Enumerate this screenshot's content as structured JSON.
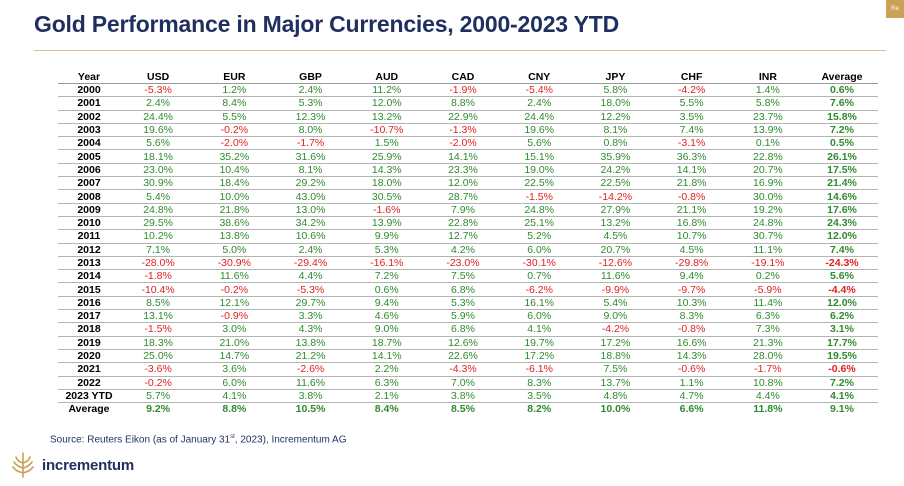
{
  "title": "Gold Performance in Major Currencies, 2000-2023 YTD",
  "corner_tag": "Re",
  "table": {
    "headers": [
      "Year",
      "USD",
      "EUR",
      "GBP",
      "AUD",
      "CAD",
      "CNY",
      "JPY",
      "CHF",
      "INR",
      "Average"
    ],
    "rows": [
      [
        "2000",
        "-5.3%",
        "1.2%",
        "2.4%",
        "11.2%",
        "-1.9%",
        "-5.4%",
        "5.8%",
        "-4.2%",
        "1.4%",
        "0.6%"
      ],
      [
        "2001",
        "2.4%",
        "8.4%",
        "5.3%",
        "12.0%",
        "8.8%",
        "2.4%",
        "18.0%",
        "5.5%",
        "5.8%",
        "7.6%"
      ],
      [
        "2002",
        "24.4%",
        "5.5%",
        "12.3%",
        "13.2%",
        "22.9%",
        "24.4%",
        "12.2%",
        "3.5%",
        "23.7%",
        "15.8%"
      ],
      [
        "2003",
        "19.6%",
        "-0.2%",
        "8.0%",
        "-10.7%",
        "-1.3%",
        "19.6%",
        "8.1%",
        "7.4%",
        "13.9%",
        "7.2%"
      ],
      [
        "2004",
        "5.6%",
        "-2.0%",
        "-1.7%",
        "1.5%",
        "-2.0%",
        "5.6%",
        "0.8%",
        "-3.1%",
        "0.1%",
        "0.5%"
      ],
      [
        "2005",
        "18.1%",
        "35.2%",
        "31.6%",
        "25.9%",
        "14.1%",
        "15.1%",
        "35.9%",
        "36.3%",
        "22.8%",
        "26.1%"
      ],
      [
        "2006",
        "23.0%",
        "10.4%",
        "8.1%",
        "14.3%",
        "23.3%",
        "19.0%",
        "24.2%",
        "14.1%",
        "20.7%",
        "17.5%"
      ],
      [
        "2007",
        "30.9%",
        "18.4%",
        "29.2%",
        "18.0%",
        "12.0%",
        "22.5%",
        "22.5%",
        "21.8%",
        "16.9%",
        "21.4%"
      ],
      [
        "2008",
        "5.4%",
        "10.0%",
        "43.0%",
        "30.5%",
        "28.7%",
        "-1.5%",
        "-14.2%",
        "-0.8%",
        "30.0%",
        "14.6%"
      ],
      [
        "2009",
        "24.8%",
        "21.8%",
        "13.0%",
        "-1.6%",
        "7.9%",
        "24.8%",
        "27.9%",
        "21.1%",
        "19.2%",
        "17.6%"
      ],
      [
        "2010",
        "29.5%",
        "38.6%",
        "34.2%",
        "13.9%",
        "22.8%",
        "25.1%",
        "13.2%",
        "16.8%",
        "24.8%",
        "24.3%"
      ],
      [
        "2011",
        "10.2%",
        "13.8%",
        "10.6%",
        "9.9%",
        "12.7%",
        "5.2%",
        "4.5%",
        "10.7%",
        "30.7%",
        "12.0%"
      ],
      [
        "2012",
        "7.1%",
        "5.0%",
        "2.4%",
        "5.3%",
        "4.2%",
        "6.0%",
        "20.7%",
        "4.5%",
        "11.1%",
        "7.4%"
      ],
      [
        "2013",
        "-28.0%",
        "-30.9%",
        "-29.4%",
        "-16.1%",
        "-23.0%",
        "-30.1%",
        "-12.6%",
        "-29.8%",
        "-19.1%",
        "-24.3%"
      ],
      [
        "2014",
        "-1.8%",
        "11.6%",
        "4.4%",
        "7.2%",
        "7.5%",
        "0.7%",
        "11.6%",
        "9.4%",
        "0.2%",
        "5.6%"
      ],
      [
        "2015",
        "-10.4%",
        "-0.2%",
        "-5.3%",
        "0.6%",
        "6.8%",
        "-6.2%",
        "-9.9%",
        "-9.7%",
        "-5.9%",
        "-4.4%"
      ],
      [
        "2016",
        "8.5%",
        "12.1%",
        "29.7%",
        "9.4%",
        "5.3%",
        "16.1%",
        "5.4%",
        "10.3%",
        "11.4%",
        "12.0%"
      ],
      [
        "2017",
        "13.1%",
        "-0.9%",
        "3.3%",
        "4.6%",
        "5.9%",
        "6.0%",
        "9.0%",
        "8.3%",
        "6.3%",
        "6.2%"
      ],
      [
        "2018",
        "-1.5%",
        "3.0%",
        "4.3%",
        "9.0%",
        "6.8%",
        "4.1%",
        "-4.2%",
        "-0.8%",
        "7.3%",
        "3.1%"
      ],
      [
        "2019",
        "18.3%",
        "21.0%",
        "13.8%",
        "18.7%",
        "12.6%",
        "19.7%",
        "17.2%",
        "16.6%",
        "21.3%",
        "17.7%"
      ],
      [
        "2020",
        "25.0%",
        "14.7%",
        "21.2%",
        "14.1%",
        "22.6%",
        "17.2%",
        "18.8%",
        "14.3%",
        "28.0%",
        "19.5%"
      ],
      [
        "2021",
        "-3.6%",
        "3.6%",
        "-2.6%",
        "2.2%",
        "-4.3%",
        "-6.1%",
        "7.5%",
        "-0.6%",
        "-1.7%",
        "-0.6%"
      ],
      [
        "2022",
        "-0.2%",
        "6.0%",
        "11.6%",
        "6.3%",
        "7.0%",
        "8.3%",
        "13.7%",
        "1.1%",
        "10.8%",
        "7.2%"
      ],
      [
        "2023 YTD",
        "5.7%",
        "4.1%",
        "3.8%",
        "2.1%",
        "3.8%",
        "3.5%",
        "4.8%",
        "4.7%",
        "4.4%",
        "4.1%"
      ]
    ],
    "average_row": [
      "Average",
      "9.2%",
      "8.8%",
      "10.5%",
      "8.4%",
      "8.5%",
      "8.2%",
      "10.0%",
      "6.6%",
      "11.8%",
      "9.1%"
    ]
  },
  "source": {
    "prefix": "Source: Reuters Eikon (as of January 31",
    "superscript": "st",
    "suffix": ", 2023), Incrementum AG"
  },
  "brand": "incrementum",
  "colors": {
    "title": "#1f2f5f",
    "positive": "#2e8b2e",
    "negative": "#e02020",
    "accent": "#c9a257"
  }
}
